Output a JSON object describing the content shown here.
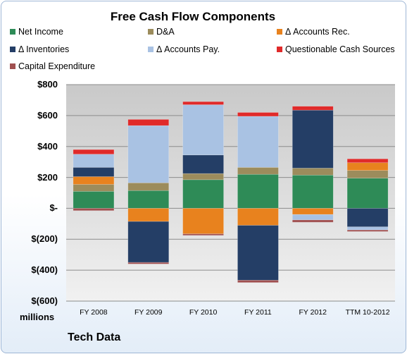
{
  "chart_data": {
    "type": "bar",
    "stacked": true,
    "title": "Free Cash Flow Components",
    "categories": [
      "FY 2008",
      "FY 2009",
      "FY 2010",
      "FY 2011",
      "FY 2012",
      "TTM 10-2012"
    ],
    "ylim": [
      -600,
      800
    ],
    "yticks": [
      {
        "value": 800,
        "label": "$800"
      },
      {
        "value": 600,
        "label": "$600"
      },
      {
        "value": 400,
        "label": "$400"
      },
      {
        "value": 200,
        "label": "$200"
      },
      {
        "value": 0,
        "label": "$-"
      },
      {
        "value": -200,
        "label": "$(200)"
      },
      {
        "value": -400,
        "label": "$(400)"
      },
      {
        "value": -600,
        "label": "$(600)"
      }
    ],
    "units_label": "millions",
    "footer": "Tech Data",
    "grid": true,
    "legend_position": "top",
    "series": [
      {
        "name": "Net Income",
        "color": "#2e8b57",
        "values": [
          110,
          115,
          185,
          220,
          215,
          195
        ]
      },
      {
        "name": "D&A",
        "color": "#9c8c5c",
        "values": [
          45,
          50,
          40,
          45,
          45,
          50
        ]
      },
      {
        "name": "Δ Accounts Rec.",
        "color": "#e8821e",
        "values": [
          50,
          -85,
          -165,
          -110,
          -40,
          50
        ]
      },
      {
        "name": "Δ Inventories",
        "color": "#243e66",
        "values": [
          60,
          -265,
          120,
          -355,
          375,
          -120
        ]
      },
      {
        "name": "Δ Accounts Pay.",
        "color": "#a9c2e3",
        "values": [
          85,
          370,
          325,
          330,
          -35,
          -20
        ]
      },
      {
        "name": "Questionable Cash Sources",
        "color": "#e02a2a",
        "values": [
          30,
          40,
          20,
          25,
          25,
          25
        ]
      },
      {
        "name": "Capital Expenditure",
        "color": "#a05050",
        "values": [
          -15,
          -10,
          -10,
          -15,
          -15,
          -10
        ]
      }
    ]
  }
}
